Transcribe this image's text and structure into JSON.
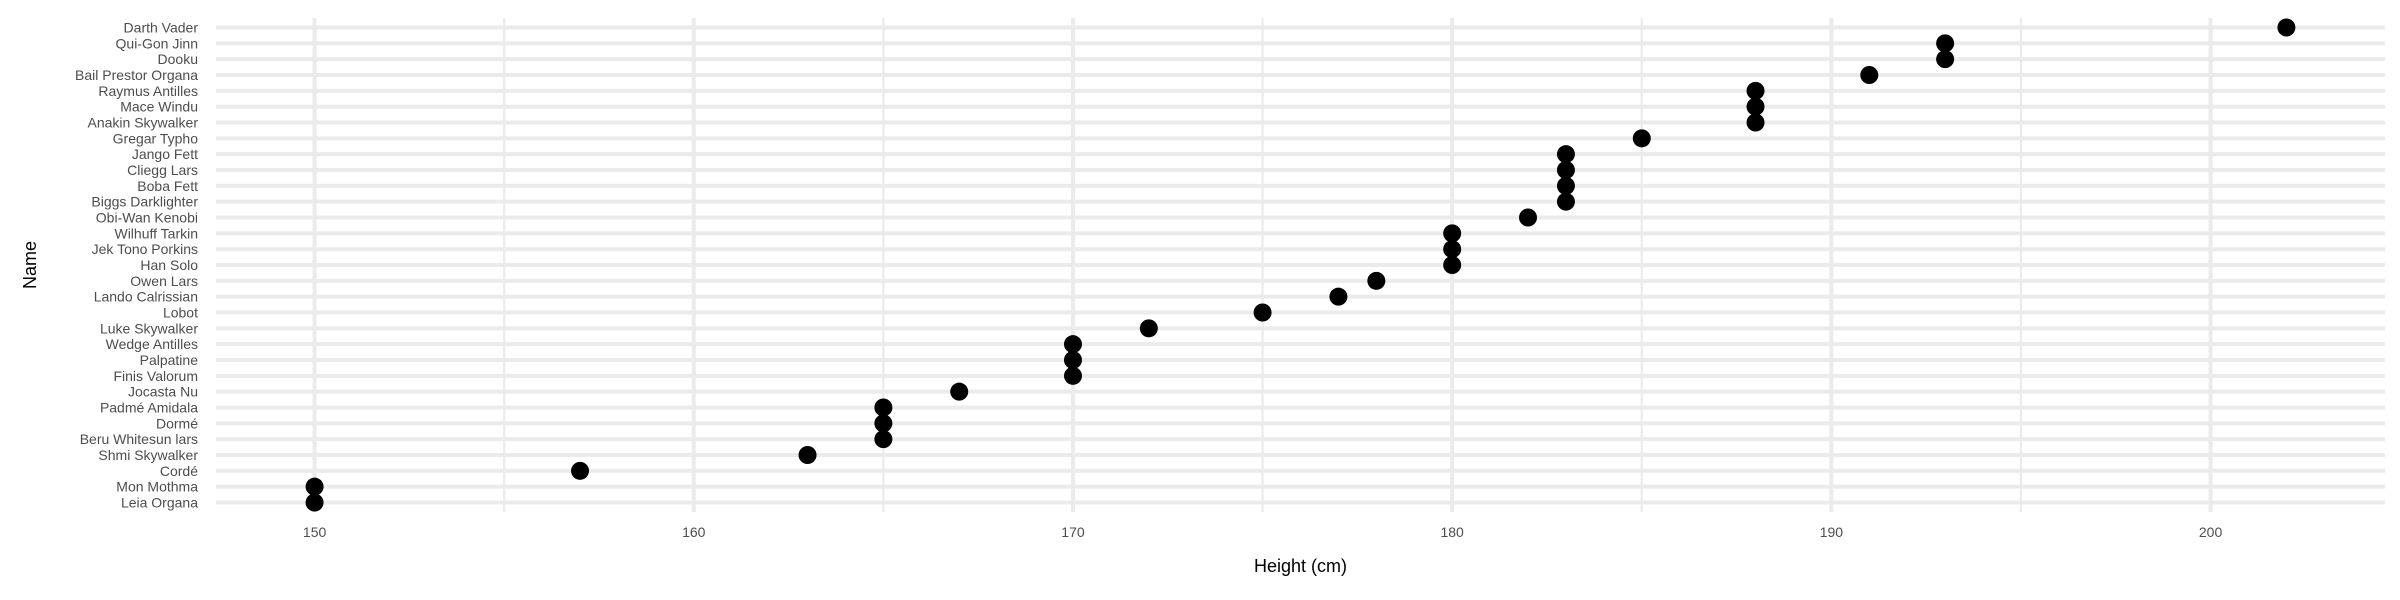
{
  "chart_data": {
    "type": "scatter",
    "title": "",
    "xlabel": "Height (cm)",
    "ylabel": "Name",
    "xlim": [
      147.4,
      204.6
    ],
    "x_ticks": [
      150,
      160,
      170,
      180,
      190,
      200
    ],
    "x_minor_ticks": [
      155,
      165,
      175,
      185,
      195
    ],
    "grid": true,
    "legend": "none",
    "point_color": "#000000",
    "grid_color": "#ebebeb",
    "background": "#ffffff",
    "points": [
      {
        "name": "Leia Organa",
        "height": 150
      },
      {
        "name": "Mon Mothma",
        "height": 150
      },
      {
        "name": "Cordé",
        "height": 157
      },
      {
        "name": "Shmi Skywalker",
        "height": 163
      },
      {
        "name": "Beru Whitesun lars",
        "height": 165
      },
      {
        "name": "Dormé",
        "height": 165
      },
      {
        "name": "Padmé Amidala",
        "height": 165
      },
      {
        "name": "Jocasta Nu",
        "height": 167
      },
      {
        "name": "Finis Valorum",
        "height": 170
      },
      {
        "name": "Palpatine",
        "height": 170
      },
      {
        "name": "Wedge Antilles",
        "height": 170
      },
      {
        "name": "Luke Skywalker",
        "height": 172
      },
      {
        "name": "Lobot",
        "height": 175
      },
      {
        "name": "Lando Calrissian",
        "height": 177
      },
      {
        "name": "Owen Lars",
        "height": 178
      },
      {
        "name": "Han Solo",
        "height": 180
      },
      {
        "name": "Jek Tono Porkins",
        "height": 180
      },
      {
        "name": "Wilhuff Tarkin",
        "height": 180
      },
      {
        "name": "Obi-Wan Kenobi",
        "height": 182
      },
      {
        "name": "Biggs Darklighter",
        "height": 183
      },
      {
        "name": "Boba Fett",
        "height": 183
      },
      {
        "name": "Cliegg Lars",
        "height": 183
      },
      {
        "name": "Jango Fett",
        "height": 183
      },
      {
        "name": "Gregar Typho",
        "height": 185
      },
      {
        "name": "Anakin Skywalker",
        "height": 188
      },
      {
        "name": "Mace Windu",
        "height": 188
      },
      {
        "name": "Raymus Antilles",
        "height": 188
      },
      {
        "name": "Bail Prestor Organa",
        "height": 191
      },
      {
        "name": "Dooku",
        "height": 193
      },
      {
        "name": "Qui-Gon Jinn",
        "height": 193
      },
      {
        "name": "Darth Vader",
        "height": 202
      }
    ]
  }
}
